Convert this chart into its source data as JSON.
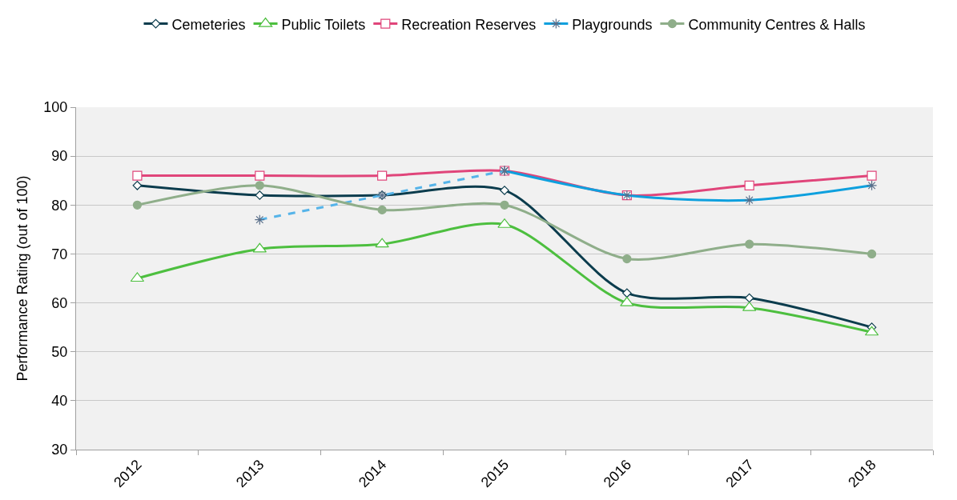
{
  "chart_data": {
    "type": "line",
    "ylabel": "Performance Rating (out of 100)",
    "categories": [
      "2012",
      "2013",
      "2014",
      "2015",
      "2016",
      "2017",
      "2018"
    ],
    "series": [
      {
        "name": "Cemeteries",
        "color": "#0b3c4d",
        "marker": "diamond",
        "values": [
          84,
          82,
          82,
          83,
          62,
          61,
          55
        ]
      },
      {
        "name": "Public Toilets",
        "color": "#4dbf3f",
        "marker": "triangle",
        "values": [
          65,
          71,
          72,
          76,
          60,
          59,
          54
        ]
      },
      {
        "name": "Recreation Reserves",
        "color": "#e0457a",
        "marker": "square",
        "values": [
          86,
          86,
          86,
          87,
          82,
          84,
          86
        ]
      },
      {
        "name": "Playgrounds",
        "color": "#0ea0de",
        "marker": "cross",
        "values": [
          null,
          null,
          null,
          87,
          82,
          81,
          84
        ]
      },
      {
        "color": "#56b4e9",
        "marker": "cross",
        "line_style": "dashed",
        "values": [
          null,
          77,
          82,
          87,
          null,
          null,
          null
        ]
      },
      {
        "name": "Community Centres & Halls",
        "color": "#8fae8a",
        "marker": "circle",
        "values": [
          80,
          84,
          79,
          80,
          69,
          72,
          70
        ]
      }
    ],
    "ylim": [
      30,
      100
    ],
    "yticks": [
      30,
      40,
      50,
      60,
      70,
      80,
      90,
      100
    ],
    "grid": "y",
    "legend": "top"
  }
}
